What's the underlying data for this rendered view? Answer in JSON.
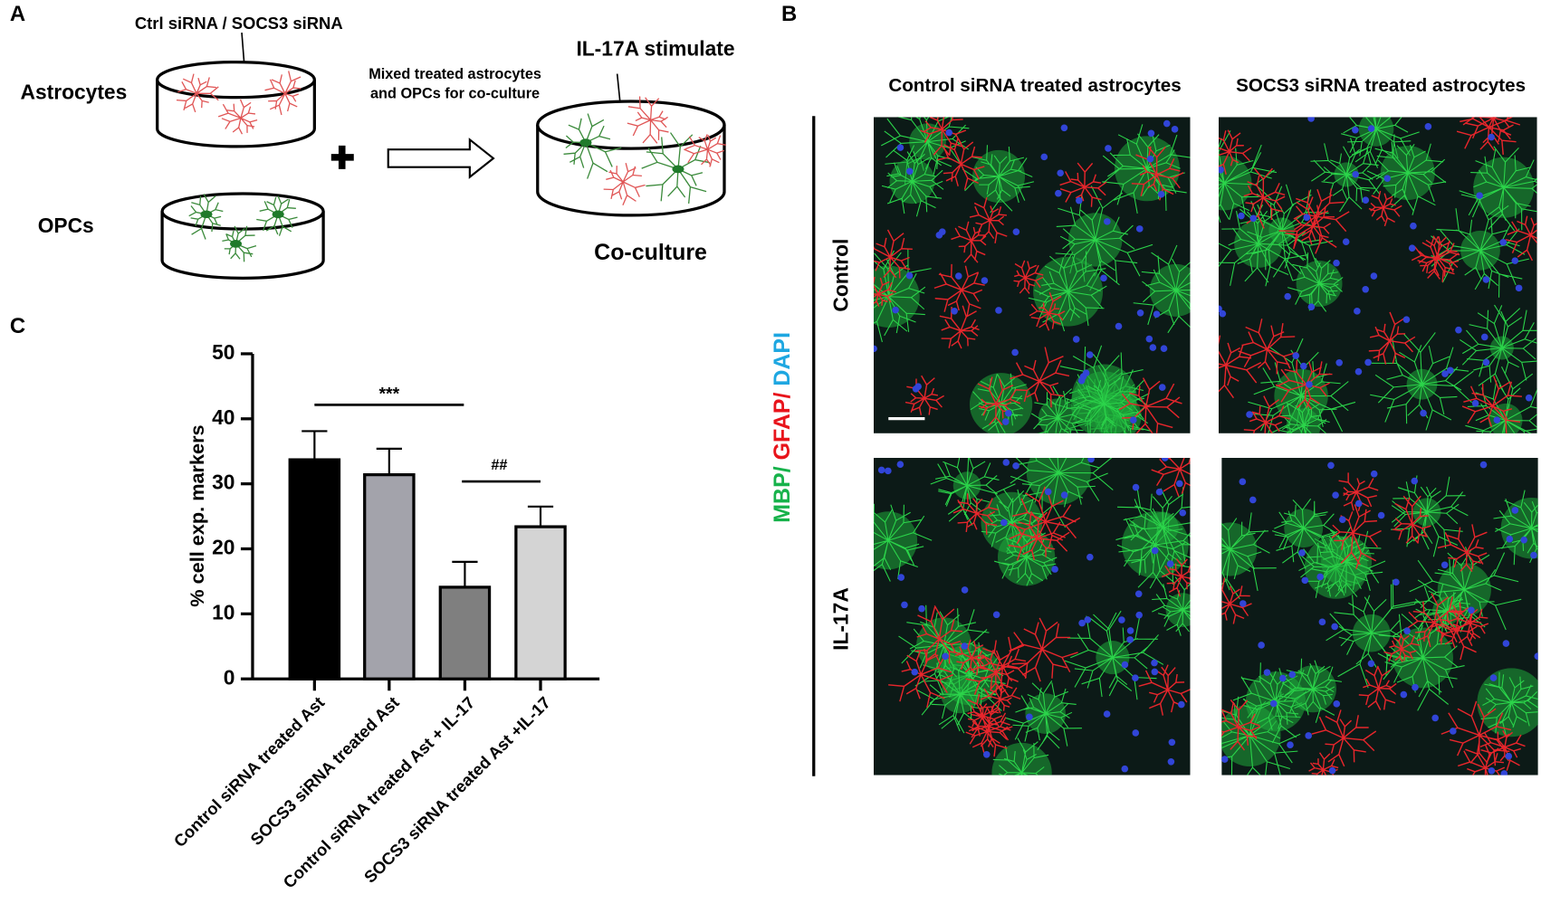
{
  "panel_a": {
    "label": "A",
    "sirna_label": "Ctrl siRNA /  SOCS3 siRNA",
    "astrocytes": "Astrocytes",
    "opcs": "OPCs",
    "mixed": [
      "Mixed  treated astrocytes",
      "and OPCs for co-culture"
    ],
    "stimulate": "IL-17A stimulate",
    "coculture": "Co-culture"
  },
  "panel_b": {
    "label": "B",
    "columns": [
      "Control siRNA treated astrocytes",
      "SOCS3 siRNA treated astrocytes"
    ],
    "rows": [
      "Control",
      "IL-17A"
    ],
    "stain": [
      {
        "text": "MBP/",
        "color": "#17b24b"
      },
      {
        "text": "GFAP/",
        "color": "#e8141b"
      },
      {
        "text": "DAPI",
        "color": "#1ea7e1"
      }
    ]
  },
  "chart_data": {
    "type": "bar",
    "panel_label": "C",
    "y_label": "% cell exp. markers",
    "categories": [
      "Control siRNA treated Ast",
      "SOCS3 siRNA treated Ast",
      "Control siRNA treated Ast + IL-17",
      "SOCS3 siRNA treated Ast +IL-17"
    ],
    "values": [
      33.7,
      31.4,
      14.1,
      23.4
    ],
    "errors": [
      4.4,
      4.0,
      3.9,
      3.1
    ],
    "colors": [
      "#000000",
      "#a3a3ab",
      "#7f7f7f",
      "#d4d4d4"
    ],
    "ylim": [
      0,
      50
    ],
    "yticks": [
      0,
      10,
      20,
      30,
      40,
      50
    ],
    "annotations": [
      "***",
      "##"
    ]
  }
}
